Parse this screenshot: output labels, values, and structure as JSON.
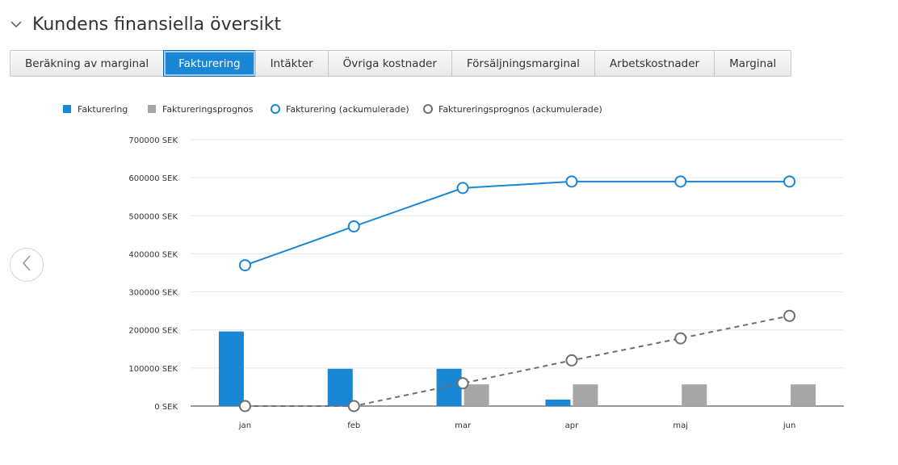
{
  "header": {
    "collapse_icon": "chevron-down-icon",
    "title": "Kundens finansiella översikt"
  },
  "tabs": [
    {
      "label": "Beräkning av marginal",
      "active": false
    },
    {
      "label": "Fakturering",
      "active": true
    },
    {
      "label": "Intäkter",
      "active": false
    },
    {
      "label": "Övriga kostnader",
      "active": false
    },
    {
      "label": "Försäljningsmarginal",
      "active": false
    },
    {
      "label": "Arbetskostnader",
      "active": false
    },
    {
      "label": "Marginal",
      "active": false
    }
  ],
  "nav": {
    "prev_icon": "chevron-left-icon"
  },
  "colors": {
    "accent": "#1a87d6",
    "forecast": "#a6a6a6",
    "forecast_line": "#6f6f6f",
    "grid": "#e6e6e6",
    "axis": "#333333"
  },
  "chart_data": {
    "type": "bar",
    "categories": [
      "jan",
      "feb",
      "mar",
      "apr",
      "maj",
      "jun"
    ],
    "ylim": [
      0,
      700000
    ],
    "yticks": [
      "0 SEK",
      "100000 SEK",
      "200000 SEK",
      "300000 SEK",
      "400000 SEK",
      "500000 SEK",
      "600000 SEK",
      "700000 SEK"
    ],
    "tick_values": [
      0,
      100000,
      200000,
      300000,
      400000,
      500000,
      600000,
      700000
    ],
    "grid": true,
    "legend_position": "top-left",
    "series": [
      {
        "name": "Fakturering",
        "kind": "bar",
        "color": "#1a87d6",
        "values": [
          196000,
          98000,
          98000,
          17000,
          0,
          0
        ]
      },
      {
        "name": "Faktureringsprognos",
        "kind": "bar",
        "color": "#a6a6a6",
        "values": [
          0,
          0,
          57000,
          57000,
          57000,
          57000
        ]
      },
      {
        "name": "Fakturering (ackumulerade)",
        "kind": "line",
        "color": "#1a87d6",
        "dashed": false,
        "values": [
          370000,
          472000,
          573000,
          590000,
          590000,
          590000
        ]
      },
      {
        "name": "Faktureringsprognos (ackumulerade)",
        "kind": "line",
        "color": "#6f6f6f",
        "dashed": true,
        "values": [
          0,
          0,
          60000,
          120000,
          178000,
          237000
        ]
      }
    ]
  }
}
